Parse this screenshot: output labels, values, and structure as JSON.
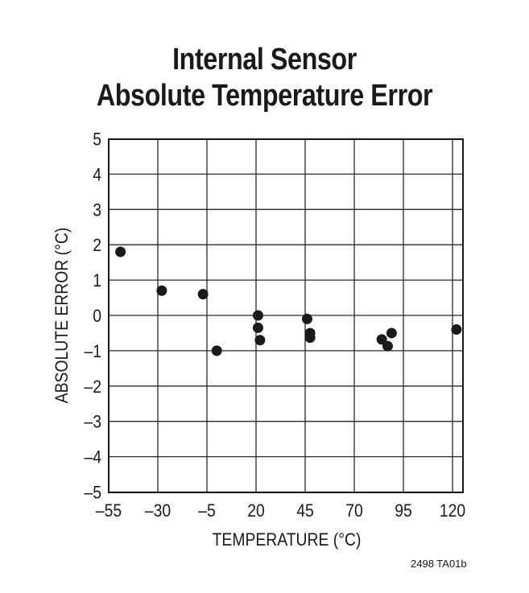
{
  "chart_data": {
    "type": "scatter",
    "title": "Internal Sensor Absolute Temperature Error",
    "title_lines": [
      "Internal Sensor",
      "Absolute Temperature Error"
    ],
    "xlabel": "TEMPERATURE (°C)",
    "ylabel": "ABSOLUTE ERROR (°C)",
    "xlim": [
      -55,
      125
    ],
    "ylim": [
      -5,
      5
    ],
    "xticks": [
      -55,
      -30,
      -5,
      20,
      45,
      70,
      95,
      120
    ],
    "xtick_labels": [
      "–55",
      "–30",
      "–5",
      "20",
      "45",
      "70",
      "95",
      "120"
    ],
    "yticks": [
      5,
      4,
      3,
      2,
      1,
      0,
      -1,
      -2,
      -3,
      -4,
      -5
    ],
    "ytick_labels": [
      "5",
      "4",
      "3",
      "2",
      "1",
      "0",
      "–1",
      "–2",
      "–3",
      "–4",
      "–5"
    ],
    "grid": true,
    "legend": null,
    "series": [
      {
        "name": "Absolute Error",
        "points": [
          {
            "x": -49,
            "y": 1.8
          },
          {
            "x": -28,
            "y": 0.7
          },
          {
            "x": -7,
            "y": 0.6
          },
          {
            "x": 0,
            "y": -1.0
          },
          {
            "x": 21,
            "y": 0.0
          },
          {
            "x": 21,
            "y": -0.35
          },
          {
            "x": 22,
            "y": -0.7
          },
          {
            "x": 46,
            "y": -0.1
          },
          {
            "x": 47.5,
            "y": -0.5
          },
          {
            "x": 47.5,
            "y": -0.63
          },
          {
            "x": 84,
            "y": -0.68
          },
          {
            "x": 87,
            "y": -0.87
          },
          {
            "x": 89,
            "y": -0.5
          },
          {
            "x": 122,
            "y": -0.4
          }
        ]
      }
    ],
    "footnote": "2498 TA01b"
  }
}
